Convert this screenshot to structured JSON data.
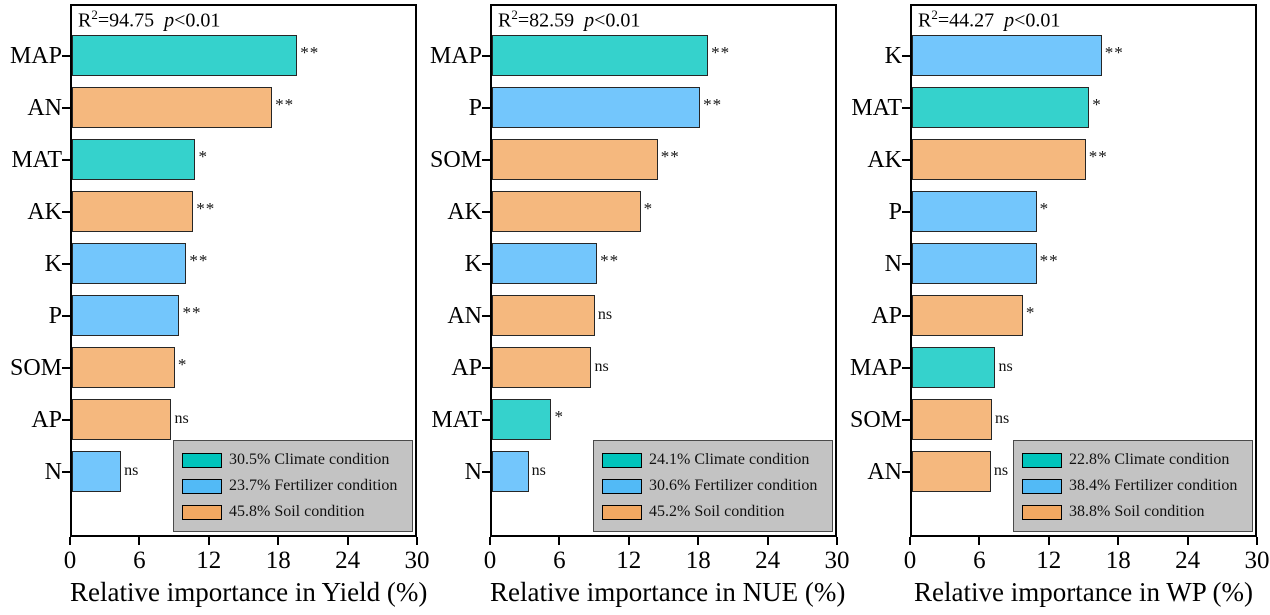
{
  "figure_name": "relative-importance-bar-charts",
  "colors": {
    "climate_bar": "#35D2CC",
    "fertilizer_bar": "#73C6FC",
    "soil_bar": "#F5B87E",
    "climate_swatch": "#00C4BC",
    "fertilizer_swatch": "#52BAF6",
    "soil_swatch": "#F2A862",
    "legend_bg": "#C3C3C3",
    "axis": "#000000"
  },
  "chart_data": [
    {
      "type": "bar",
      "orientation": "horizontal",
      "id": "yield",
      "r2": "94.75",
      "p": "<0.01",
      "annotation_text": "R2=94.75  p<0.01",
      "xlabel": "Relative importance in Yield (%)",
      "xlim": [
        0,
        30
      ],
      "xticks": [
        0,
        6,
        12,
        18,
        24,
        30
      ],
      "categories": [
        "MAP",
        "AN",
        "MAT",
        "AK",
        "K",
        "P",
        "SOM",
        "AP",
        "N"
      ],
      "values": [
        19.7,
        17.5,
        10.8,
        10.6,
        10.0,
        9.4,
        9.0,
        8.7,
        4.3
      ],
      "groups": [
        "climate",
        "soil",
        "climate",
        "soil",
        "fertilizer",
        "fertilizer",
        "soil",
        "soil",
        "fertilizer"
      ],
      "significance": [
        "**",
        "**",
        "*",
        "**",
        "**",
        "**",
        "*",
        "ns",
        "ns"
      ],
      "legend": [
        {
          "group": "climate",
          "label": "30.5% Climate condition"
        },
        {
          "group": "fertilizer",
          "label": "23.7% Fertilizer condition"
        },
        {
          "group": "soil",
          "label": "45.8% Soil condition"
        }
      ]
    },
    {
      "type": "bar",
      "orientation": "horizontal",
      "id": "nue",
      "r2": "82.59",
      "p": "<0.01",
      "annotation_text": "R2=82.59  p<0.01",
      "xlabel": "Relative importance in NUE (%)",
      "xlim": [
        0,
        30
      ],
      "xticks": [
        0,
        6,
        12,
        18,
        24,
        30
      ],
      "categories": [
        "MAP",
        "P",
        "SOM",
        "AK",
        "K",
        "AN",
        "AP",
        "MAT",
        "N"
      ],
      "values": [
        18.9,
        18.2,
        14.5,
        13.0,
        9.2,
        9.0,
        8.7,
        5.2,
        3.2
      ],
      "groups": [
        "climate",
        "fertilizer",
        "soil",
        "soil",
        "fertilizer",
        "soil",
        "soil",
        "climate",
        "fertilizer"
      ],
      "significance": [
        "**",
        "**",
        "**",
        "*",
        "**",
        "ns",
        "ns",
        "*",
        "ns"
      ],
      "legend": [
        {
          "group": "climate",
          "label": "24.1% Climate condition"
        },
        {
          "group": "fertilizer",
          "label": "30.6% Fertilizer condition"
        },
        {
          "group": "soil",
          "label": "45.2% Soil condition"
        }
      ]
    },
    {
      "type": "bar",
      "orientation": "horizontal",
      "id": "wp",
      "r2": "44.27",
      "p": "<0.01",
      "annotation_text": "R2=44.27  p<0.01",
      "xlabel": "Relative importance in WP (%)",
      "xlim": [
        0,
        30
      ],
      "xticks": [
        0,
        6,
        12,
        18,
        24,
        30
      ],
      "categories": [
        "K",
        "MAT",
        "AK",
        "P",
        "N",
        "AP",
        "MAP",
        "SOM",
        "AN"
      ],
      "values": [
        16.6,
        15.5,
        15.2,
        10.9,
        10.9,
        9.7,
        7.3,
        7.0,
        6.9
      ],
      "groups": [
        "fertilizer",
        "climate",
        "soil",
        "fertilizer",
        "fertilizer",
        "soil",
        "climate",
        "soil",
        "soil"
      ],
      "significance": [
        "**",
        "*",
        "**",
        "*",
        "**",
        "*",
        "ns",
        "ns",
        "ns"
      ],
      "legend": [
        {
          "group": "climate",
          "label": "22.8% Climate condition"
        },
        {
          "group": "fertilizer",
          "label": "38.4% Fertilizer condition"
        },
        {
          "group": "soil",
          "label": "38.8% Soil condition"
        }
      ]
    }
  ]
}
